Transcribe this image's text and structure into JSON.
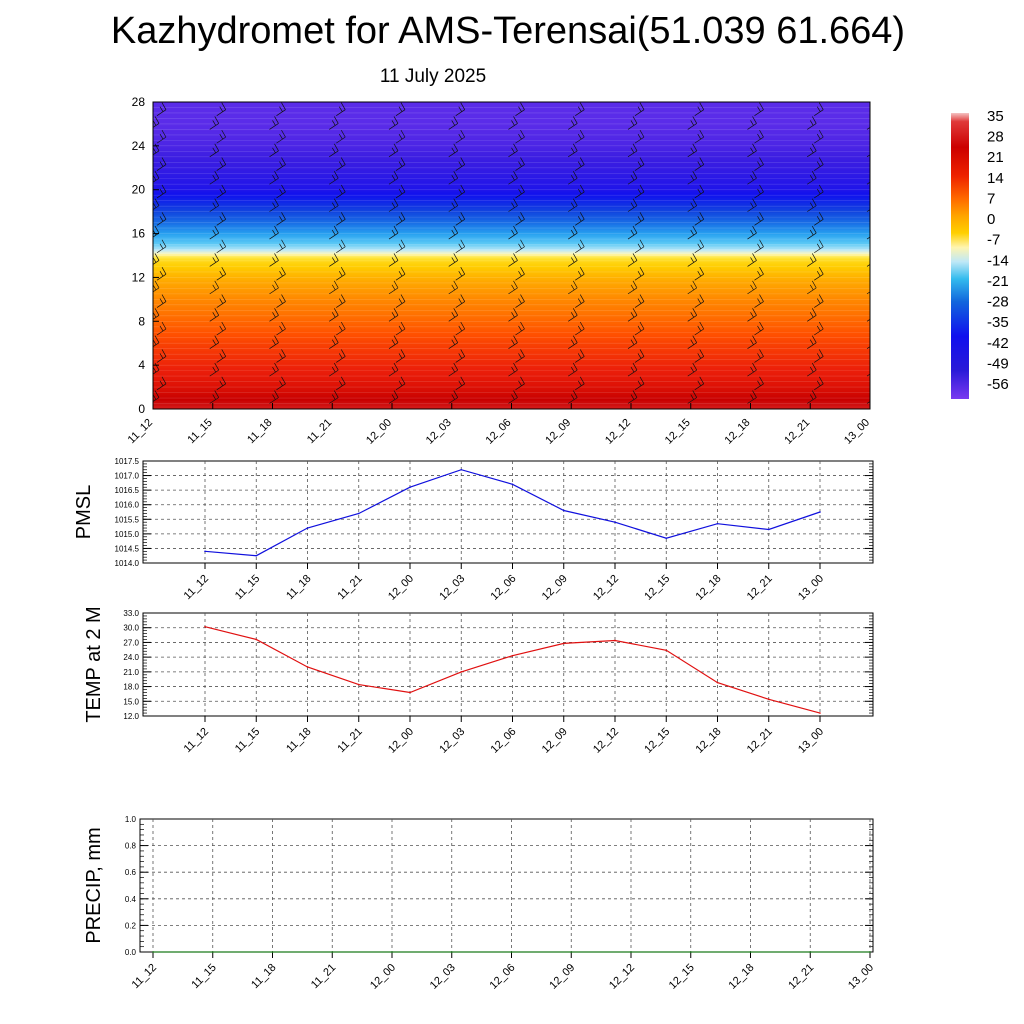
{
  "header": {
    "title": "Kazhydromet for AMS-Terensai(51.039 61.664)",
    "date": "11 July 2025"
  },
  "time_labels": [
    "11_12",
    "11_15",
    "11_18",
    "11_21",
    "12_00",
    "12_03",
    "12_06",
    "12_09",
    "12_12",
    "12_15",
    "12_18",
    "12_21",
    "13_00"
  ],
  "chart_data": [
    {
      "type": "heatmap",
      "name": "upper-air-temperature-profile",
      "title": "",
      "xlabel": "",
      "ylabel": "",
      "categories": [
        "11_12",
        "11_15",
        "11_18",
        "11_21",
        "12_00",
        "12_03",
        "12_06",
        "12_09",
        "12_12",
        "12_15",
        "12_18",
        "12_21",
        "13_00"
      ],
      "ylim": [
        0,
        28
      ],
      "yticks": [
        "0",
        "4",
        "8",
        "12",
        "16",
        "20",
        "24",
        "28"
      ],
      "colorbar": {
        "labels": [
          "35",
          "28",
          "21",
          "14",
          "7",
          "0",
          "-7",
          "-14",
          "-21",
          "-28",
          "-35",
          "-42",
          "-49",
          "-56"
        ],
        "range": [
          -60,
          38
        ]
      },
      "temperature_profile": {
        "levels": [
          0,
          2,
          4,
          6,
          8,
          10,
          12,
          13.5,
          14.5,
          16,
          18,
          20,
          22,
          24,
          26,
          28
        ],
        "values": [
          31,
          24,
          20,
          16,
          11,
          6,
          -1,
          -7,
          -16,
          -28,
          -42,
          -52,
          -55,
          -57,
          -58,
          -58
        ]
      },
      "wind_barbs": true,
      "grid": false
    },
    {
      "type": "line",
      "name": "pmsl",
      "ylabel": "PMSL",
      "categories": [
        "11_12",
        "11_15",
        "11_18",
        "11_21",
        "12_00",
        "12_03",
        "12_06",
        "12_09",
        "12_12",
        "12_15",
        "12_18",
        "12_21",
        "13_00"
      ],
      "values": [
        1014.4,
        1014.25,
        1015.2,
        1015.7,
        1016.6,
        1017.2,
        1016.7,
        1015.8,
        1015.4,
        1014.85,
        1015.35,
        1015.15,
        1015.75
      ],
      "ylim": [
        1014.0,
        1017.5
      ],
      "yticks": [
        "1014.0",
        "1014.5",
        "1015.0",
        "1015.5",
        "1016.0",
        "1016.5",
        "1017.0",
        "1017.5"
      ],
      "color": "#1010dd",
      "grid": true
    },
    {
      "type": "line",
      "name": "temp-2m",
      "ylabel": "TEMP at 2 M",
      "categories": [
        "11_12",
        "11_15",
        "11_18",
        "11_21",
        "12_00",
        "12_03",
        "12_06",
        "12_09",
        "12_12",
        "12_15",
        "12_18",
        "12_21",
        "13_00"
      ],
      "values": [
        30.2,
        27.6,
        22.0,
        18.4,
        16.8,
        21.0,
        24.3,
        26.8,
        27.4,
        25.4,
        18.8,
        15.4,
        12.6
      ],
      "ylim": [
        12.0,
        33.0
      ],
      "yticks": [
        "12.0",
        "15.0",
        "18.0",
        "21.0",
        "24.0",
        "27.0",
        "30.0",
        "33.0"
      ],
      "color": "#e01010",
      "grid": true
    },
    {
      "type": "line",
      "name": "precipitation",
      "ylabel": "PRECIP, mm",
      "categories": [
        "11_12",
        "11_15",
        "11_18",
        "11_21",
        "12_00",
        "12_03",
        "12_06",
        "12_09",
        "12_12",
        "12_15",
        "12_18",
        "12_21",
        "13_00"
      ],
      "values": [
        0,
        0,
        0,
        0,
        0,
        0,
        0,
        0,
        0,
        0,
        0,
        0,
        0
      ],
      "ylim": [
        0.0,
        1.0
      ],
      "yticks": [
        "0.0",
        "0.2",
        "0.4",
        "0.6",
        "0.8",
        "1.0"
      ],
      "color": "#1a7a1a",
      "grid": true
    }
  ]
}
